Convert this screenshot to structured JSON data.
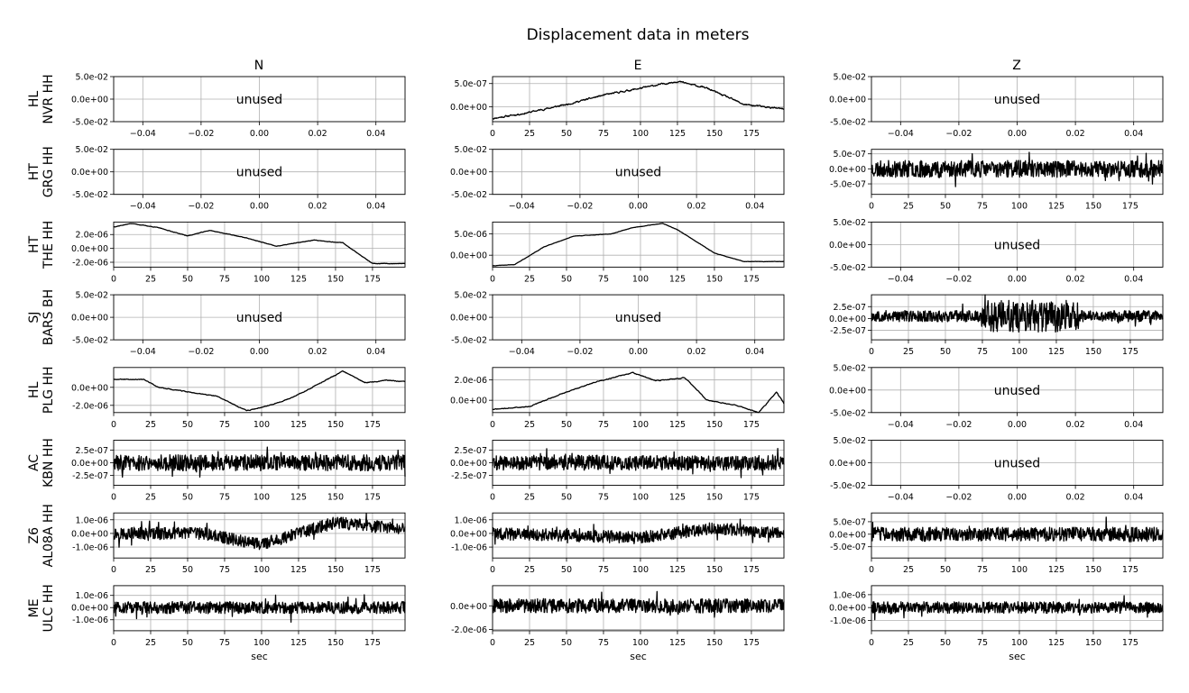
{
  "figure": {
    "title": "Displacement data in meters"
  },
  "columns": [
    "N",
    "E",
    "Z"
  ],
  "stations": [
    {
      "net": "HL",
      "sta": "NVR HH"
    },
    {
      "net": "HT",
      "sta": "GRG HH"
    },
    {
      "net": "HT",
      "sta": "THE HH"
    },
    {
      "net": "SJ",
      "sta": "BARS BH"
    },
    {
      "net": "HL",
      "sta": "PLG HH"
    },
    {
      "net": "AC",
      "sta": "KBN HH"
    },
    {
      "net": "Z6",
      "sta": "AL08A HH"
    },
    {
      "net": "ME",
      "sta": "ULC HH"
    }
  ],
  "unused_label": "unused",
  "xlabel": "sec",
  "colors": {
    "trace": "#000000",
    "grid": "#b0b0b0",
    "unused_text": "#808080"
  },
  "unused_axis": {
    "xticks": [
      -0.04,
      -0.02,
      0.0,
      0.02,
      0.04
    ],
    "xtick_labels": [
      "−0.04",
      "−0.02",
      "0.00",
      "0.02",
      "0.04"
    ],
    "xlim": [
      -0.05,
      0.05
    ],
    "yticks": [
      -0.05,
      0.0,
      0.05
    ],
    "ytick_labels": [
      "-5.0e-02",
      "0.0e+00",
      "5.0e-02"
    ],
    "ylim": [
      -0.05,
      0.05
    ]
  },
  "chart_data": {
    "type": "line",
    "title": "Displacement data in meters",
    "x_unit": "sec",
    "time_axis": {
      "xticks": [
        0,
        25,
        50,
        75,
        100,
        125,
        150,
        175
      ],
      "xtick_labels": [
        "0",
        "25",
        "50",
        "75",
        "100",
        "125",
        "150",
        "175"
      ],
      "xlim": [
        0,
        197
      ]
    },
    "panels": [
      {
        "row": 0,
        "col": 0,
        "used": false
      },
      {
        "row": 0,
        "col": 1,
        "used": true,
        "shape": "smooth",
        "seed": 11,
        "noise": 4e-08,
        "trend": [
          [
            0,
            -2.5e-07
          ],
          [
            20,
            -1.5e-07
          ],
          [
            50,
            5e-08
          ],
          [
            75,
            2.5e-07
          ],
          [
            100,
            4e-07
          ],
          [
            125,
            5.5e-07
          ],
          [
            145,
            4e-07
          ],
          [
            170,
            5e-08
          ],
          [
            197,
            -5e-08
          ]
        ],
        "ylim": [
          -3.2e-07,
          6.5e-07
        ],
        "yticks": [
          0.0,
          5e-07
        ],
        "ytick_labels": [
          "0.0e+00",
          "5.0e-07"
        ]
      },
      {
        "row": 0,
        "col": 2,
        "used": false
      },
      {
        "row": 1,
        "col": 0,
        "used": false
      },
      {
        "row": 1,
        "col": 1,
        "used": false
      },
      {
        "row": 1,
        "col": 2,
        "used": true,
        "shape": "noise",
        "seed": 23,
        "noise": 2.8e-07,
        "trend": [
          [
            0,
            0.0
          ],
          [
            197,
            0.0
          ]
        ],
        "ylim": [
          -8.5e-07,
          6.5e-07
        ],
        "yticks": [
          -5e-07,
          0.0,
          5e-07
        ],
        "ytick_labels": [
          "-5.0e-07",
          "0.0e+00",
          "5.0e-07"
        ]
      },
      {
        "row": 2,
        "col": 0,
        "used": true,
        "shape": "smooth",
        "seed": 37,
        "noise": 8e-08,
        "trend": [
          [
            0,
            3.1e-06
          ],
          [
            12,
            3.6e-06
          ],
          [
            30,
            3e-06
          ],
          [
            50,
            1.8e-06
          ],
          [
            65,
            2.6e-06
          ],
          [
            90,
            1.5e-06
          ],
          [
            110,
            3e-07
          ],
          [
            135,
            1.2e-06
          ],
          [
            155,
            8e-07
          ],
          [
            175,
            -2.2e-06
          ],
          [
            197,
            -2.2e-06
          ]
        ],
        "ylim": [
          -2.7e-06,
          3.8e-06
        ],
        "yticks": [
          -2e-06,
          0.0,
          2e-06
        ],
        "ytick_labels": [
          "-2.0e-06",
          "0.0e+00",
          "2.0e-06"
        ]
      },
      {
        "row": 2,
        "col": 1,
        "used": true,
        "shape": "smooth",
        "seed": 41,
        "noise": 9e-08,
        "trend": [
          [
            0,
            -2.5e-06
          ],
          [
            15,
            -2.2e-06
          ],
          [
            35,
            2e-06
          ],
          [
            55,
            4.5e-06
          ],
          [
            80,
            5e-06
          ],
          [
            95,
            6.5e-06
          ],
          [
            115,
            7.5e-06
          ],
          [
            125,
            6e-06
          ],
          [
            150,
            5e-07
          ],
          [
            170,
            -1.5e-06
          ],
          [
            197,
            -1.5e-06
          ]
        ],
        "ylim": [
          -2.8e-06,
          7.8e-06
        ],
        "yticks": [
          0.0,
          5e-06
        ],
        "ytick_labels": [
          "0.0e+00",
          "5.0e-06"
        ]
      },
      {
        "row": 2,
        "col": 2,
        "used": false
      },
      {
        "row": 3,
        "col": 0,
        "used": false
      },
      {
        "row": 3,
        "col": 1,
        "used": false
      },
      {
        "row": 3,
        "col": 2,
        "used": true,
        "shape": "noise",
        "seed": 53,
        "noise": 1.2e-07,
        "burst": [
          [
            75,
            140,
            2.2e-07
          ]
        ],
        "trend": [
          [
            0,
            5e-08
          ],
          [
            197,
            5e-08
          ]
        ],
        "ylim": [
          -4.5e-07,
          5e-07
        ],
        "yticks": [
          -2.5e-07,
          0.0,
          2.5e-07
        ],
        "ytick_labels": [
          "-2.5e-07",
          "0.0e+00",
          "2.5e-07"
        ]
      },
      {
        "row": 4,
        "col": 0,
        "used": true,
        "shape": "smooth",
        "seed": 67,
        "noise": 1e-07,
        "trend": [
          [
            0,
            9e-07
          ],
          [
            20,
            9e-07
          ],
          [
            30,
            0.0
          ],
          [
            50,
            -5e-07
          ],
          [
            70,
            -1e-06
          ],
          [
            90,
            -2.6e-06
          ],
          [
            105,
            -2e-06
          ],
          [
            120,
            -1.2e-06
          ],
          [
            140,
            5e-07
          ],
          [
            155,
            1.8e-06
          ],
          [
            170,
            5e-07
          ],
          [
            185,
            8e-07
          ],
          [
            197,
            6e-07
          ]
        ],
        "ylim": [
          -2.8e-06,
          2.2e-06
        ],
        "yticks": [
          -2e-06,
          0.0
        ],
        "ytick_labels": [
          "-2.0e-06",
          "0.0e+00"
        ]
      },
      {
        "row": 4,
        "col": 1,
        "used": true,
        "shape": "smooth",
        "seed": 71,
        "noise": 9e-08,
        "trend": [
          [
            0,
            -9e-07
          ],
          [
            25,
            -6e-07
          ],
          [
            50,
            8e-07
          ],
          [
            70,
            1.8e-06
          ],
          [
            95,
            2.7e-06
          ],
          [
            110,
            1.9e-06
          ],
          [
            130,
            2.2e-06
          ],
          [
            145,
            0.0
          ],
          [
            165,
            -5e-07
          ],
          [
            180,
            -1.2e-06
          ],
          [
            192,
            8e-07
          ],
          [
            197,
            -3e-07
          ]
        ],
        "ylim": [
          -1.2e-06,
          3.2e-06
        ],
        "yticks": [
          0.0,
          2e-06
        ],
        "ytick_labels": [
          "0.0e+00",
          "2.0e-06"
        ]
      },
      {
        "row": 4,
        "col": 2,
        "used": false
      },
      {
        "row": 5,
        "col": 0,
        "used": true,
        "shape": "noise",
        "seed": 83,
        "noise": 1.6e-07,
        "trend": [
          [
            0,
            0.0
          ],
          [
            197,
            0.0
          ]
        ],
        "ylim": [
          -4.5e-07,
          4.5e-07
        ],
        "yticks": [
          -2.5e-07,
          0.0,
          2.5e-07
        ],
        "ytick_labels": [
          "-2.5e-07",
          "0.0e+00",
          "2.5e-07"
        ]
      },
      {
        "row": 5,
        "col": 1,
        "used": true,
        "shape": "noise",
        "seed": 89,
        "noise": 1.5e-07,
        "trend": [
          [
            0,
            0.0
          ],
          [
            197,
            0.0
          ]
        ],
        "ylim": [
          -4.5e-07,
          4.5e-07
        ],
        "yticks": [
          -2.5e-07,
          0.0,
          2.5e-07
        ],
        "ytick_labels": [
          "-2.5e-07",
          "0.0e+00",
          "2.5e-07"
        ]
      },
      {
        "row": 5,
        "col": 2,
        "used": false
      },
      {
        "row": 6,
        "col": 0,
        "used": true,
        "shape": "noise",
        "seed": 97,
        "noise": 4.5e-07,
        "trend": [
          [
            0,
            0.0
          ],
          [
            60,
            0.0
          ],
          [
            100,
            -8e-07
          ],
          [
            150,
            8e-07
          ],
          [
            197,
            3e-07
          ]
        ],
        "ylim": [
          -1.8e-06,
          1.5e-06
        ],
        "yticks": [
          -1e-06,
          0.0,
          1e-06
        ],
        "ytick_labels": [
          "-1.0e-06",
          "0.0e+00",
          "1.0e-06"
        ]
      },
      {
        "row": 6,
        "col": 1,
        "used": true,
        "shape": "noise",
        "seed": 101,
        "noise": 4.5e-07,
        "trend": [
          [
            0,
            0.0
          ],
          [
            100,
            -3e-07
          ],
          [
            150,
            4e-07
          ],
          [
            197,
            0.0
          ]
        ],
        "ylim": [
          -1.8e-06,
          1.5e-06
        ],
        "yticks": [
          -1e-06,
          0.0,
          1e-06
        ],
        "ytick_labels": [
          "-1.0e-06",
          "0.0e+00",
          "1.0e-06"
        ]
      },
      {
        "row": 6,
        "col": 2,
        "used": true,
        "shape": "noise",
        "seed": 103,
        "noise": 2.8e-07,
        "trend": [
          [
            0,
            0.0
          ],
          [
            197,
            0.0
          ]
        ],
        "ylim": [
          -9.5e-07,
          8.5e-07
        ],
        "yticks": [
          -5e-07,
          0.0,
          5e-07
        ],
        "ytick_labels": [
          "-5.0e-07",
          "0.0e+00",
          "5.0e-07"
        ]
      },
      {
        "row": 7,
        "col": 0,
        "used": true,
        "shape": "noise",
        "seed": 107,
        "noise": 5e-07,
        "trend": [
          [
            0,
            0.0
          ],
          [
            197,
            0.0
          ]
        ],
        "ylim": [
          -1.9e-06,
          1.8e-06
        ],
        "yticks": [
          -1e-06,
          0.0,
          1e-06
        ],
        "ytick_labels": [
          "-1.0e-06",
          "0.0e+00",
          "1.0e-06"
        ]
      },
      {
        "row": 7,
        "col": 1,
        "used": true,
        "shape": "noise",
        "seed": 109,
        "noise": 6e-07,
        "trend": [
          [
            0,
            0.0
          ],
          [
            197,
            0.0
          ]
        ],
        "ylim": [
          -2.1e-06,
          1.7e-06
        ],
        "yticks": [
          -2e-06,
          0.0
        ],
        "ytick_labels": [
          "-2.0e-06",
          "0.0e+00"
        ]
      },
      {
        "row": 7,
        "col": 2,
        "used": true,
        "shape": "noise",
        "seed": 113,
        "noise": 4.5e-07,
        "trend": [
          [
            0,
            0.0
          ],
          [
            197,
            0.0
          ]
        ],
        "ylim": [
          -1.8e-06,
          1.7e-06
        ],
        "yticks": [
          -1e-06,
          0.0,
          1e-06
        ],
        "ytick_labels": [
          "-1.0e-06",
          "0.0e+00",
          "1.0e-06"
        ]
      }
    ]
  }
}
